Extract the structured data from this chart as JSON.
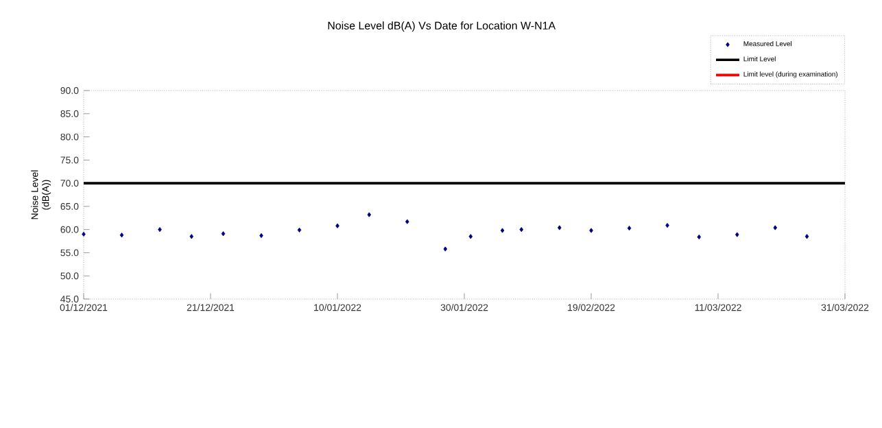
{
  "chart_data": {
    "type": "scatter",
    "title": "Noise Level dB(A) Vs Date for Location W-N1A",
    "ylabel": "Noise Level (dB(A))",
    "x": [
      "2021-12-01",
      "2021-12-07",
      "2021-12-13",
      "2021-12-18",
      "2021-12-23",
      "2021-12-29",
      "2022-01-04",
      "2022-01-10",
      "2022-01-15",
      "2022-01-21",
      "2022-01-27",
      "2022-01-31",
      "2022-02-05",
      "2022-02-08",
      "2022-02-14",
      "2022-02-19",
      "2022-02-25",
      "2022-03-03",
      "2022-03-08",
      "2022-03-14",
      "2022-03-20",
      "2022-03-25"
    ],
    "series": [
      {
        "name": "Measured Level",
        "color": "#000080",
        "marker": "diamond",
        "values": [
          59.0,
          58.8,
          60.0,
          58.5,
          59.1,
          58.7,
          59.9,
          60.8,
          63.2,
          61.7,
          55.8,
          58.5,
          59.8,
          60.0,
          60.4,
          59.8,
          60.3,
          60.9,
          58.4,
          58.9,
          60.4,
          58.5
        ]
      },
      {
        "name": "Limit Level",
        "type": "line",
        "color": "#000000",
        "x": [
          "2021-12-01",
          "2022-03-31"
        ],
        "values": [
          70,
          70
        ]
      },
      {
        "name": "Limit level (during examination)",
        "type": "line",
        "color": "#ff0000",
        "values": [
          null,
          null,
          null,
          null,
          null,
          null,
          null,
          null,
          null,
          null,
          null,
          null,
          null,
          null,
          null,
          null,
          null,
          null,
          null,
          null,
          null,
          null
        ]
      }
    ],
    "xlim": [
      "2021-12-01",
      "2022-03-31"
    ],
    "xticks": [
      {
        "value": "2021-12-01",
        "label": "01/12/2021"
      },
      {
        "value": "2021-12-21",
        "label": "21/12/2021"
      },
      {
        "value": "2022-01-10",
        "label": "10/01/2022"
      },
      {
        "value": "2022-01-30",
        "label": "30/01/2022"
      },
      {
        "value": "2022-02-19",
        "label": "19/02/2022"
      },
      {
        "value": "2022-03-11",
        "label": "11/03/2022"
      },
      {
        "value": "2022-03-31",
        "label": "31/03/2022"
      }
    ],
    "ylim": [
      45,
      90
    ],
    "yticks": [
      {
        "value": 45,
        "label": "45.0"
      },
      {
        "value": 50,
        "label": "50.0"
      },
      {
        "value": 55,
        "label": "55.0"
      },
      {
        "value": 60,
        "label": "60.0"
      },
      {
        "value": 65,
        "label": "65.0"
      },
      {
        "value": 70,
        "label": "70.0"
      },
      {
        "value": 75,
        "label": "75.0"
      },
      {
        "value": 80,
        "label": "80.0"
      },
      {
        "value": 85,
        "label": "85.0"
      },
      {
        "value": 90,
        "label": "90.0"
      }
    ],
    "grid": false,
    "legend": "top right"
  }
}
